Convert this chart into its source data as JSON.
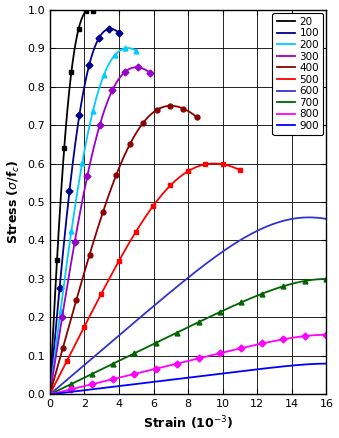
{
  "xlabel": "Strain (10$^{-3}$)",
  "ylabel": "Stress ($\\sigma$/f$_c$)",
  "xlim": [
    0,
    16
  ],
  "ylim": [
    0,
    1.0
  ],
  "xticks": [
    0,
    2,
    4,
    6,
    8,
    10,
    12,
    14,
    16
  ],
  "yticks": [
    0.0,
    0.1,
    0.2,
    0.3,
    0.4,
    0.5,
    0.6,
    0.7,
    0.8,
    0.9,
    1.0
  ],
  "series": [
    {
      "label": "20",
      "color": "#000000",
      "marker": "s",
      "peak_strain": 0.0023,
      "peak_stress": 1.0,
      "n": 2.0,
      "eps_max": 0.0025,
      "nm": 7
    },
    {
      "label": "100",
      "color": "#00008B",
      "marker": "D",
      "peak_strain": 0.0035,
      "peak_stress": 0.95,
      "n": 2.2,
      "eps_max": 0.004,
      "nm": 8
    },
    {
      "label": "200",
      "color": "#00CCFF",
      "marker": "^",
      "peak_strain": 0.0045,
      "peak_stress": 0.9,
      "n": 2.3,
      "eps_max": 0.005,
      "nm": 9
    },
    {
      "label": "300",
      "color": "#9900CC",
      "marker": "D",
      "peak_strain": 0.005,
      "peak_stress": 0.85,
      "n": 2.5,
      "eps_max": 0.0058,
      "nm": 9
    },
    {
      "label": "400",
      "color": "#8B0000",
      "marker": "o",
      "peak_strain": 0.007,
      "peak_stress": 0.75,
      "n": 3.0,
      "eps_max": 0.0085,
      "nm": 12
    },
    {
      "label": "500",
      "color": "#FF0000",
      "marker": "s",
      "peak_strain": 0.0095,
      "peak_stress": 0.6,
      "n": 3.5,
      "eps_max": 0.011,
      "nm": 12
    },
    {
      "label": "600",
      "color": "#3333CC",
      "marker": "None",
      "peak_strain": 0.015,
      "peak_stress": 0.46,
      "n": 5.0,
      "eps_max": 0.016,
      "nm": 0
    },
    {
      "label": "700",
      "color": "#006400",
      "marker": "^",
      "peak_strain": 0.016,
      "peak_stress": 0.3,
      "n": 7.0,
      "eps_max": 0.016,
      "nm": 14
    },
    {
      "label": "800",
      "color": "#FF00FF",
      "marker": "D",
      "peak_strain": 0.016,
      "peak_stress": 0.155,
      "n": 9.0,
      "eps_max": 0.016,
      "nm": 14
    },
    {
      "label": "900",
      "color": "#0000FF",
      "marker": "None",
      "peak_strain": 0.016,
      "peak_stress": 0.08,
      "n": 12.0,
      "eps_max": 0.016,
      "nm": 0
    }
  ],
  "figsize": [
    3.39,
    4.38
  ],
  "dpi": 100
}
